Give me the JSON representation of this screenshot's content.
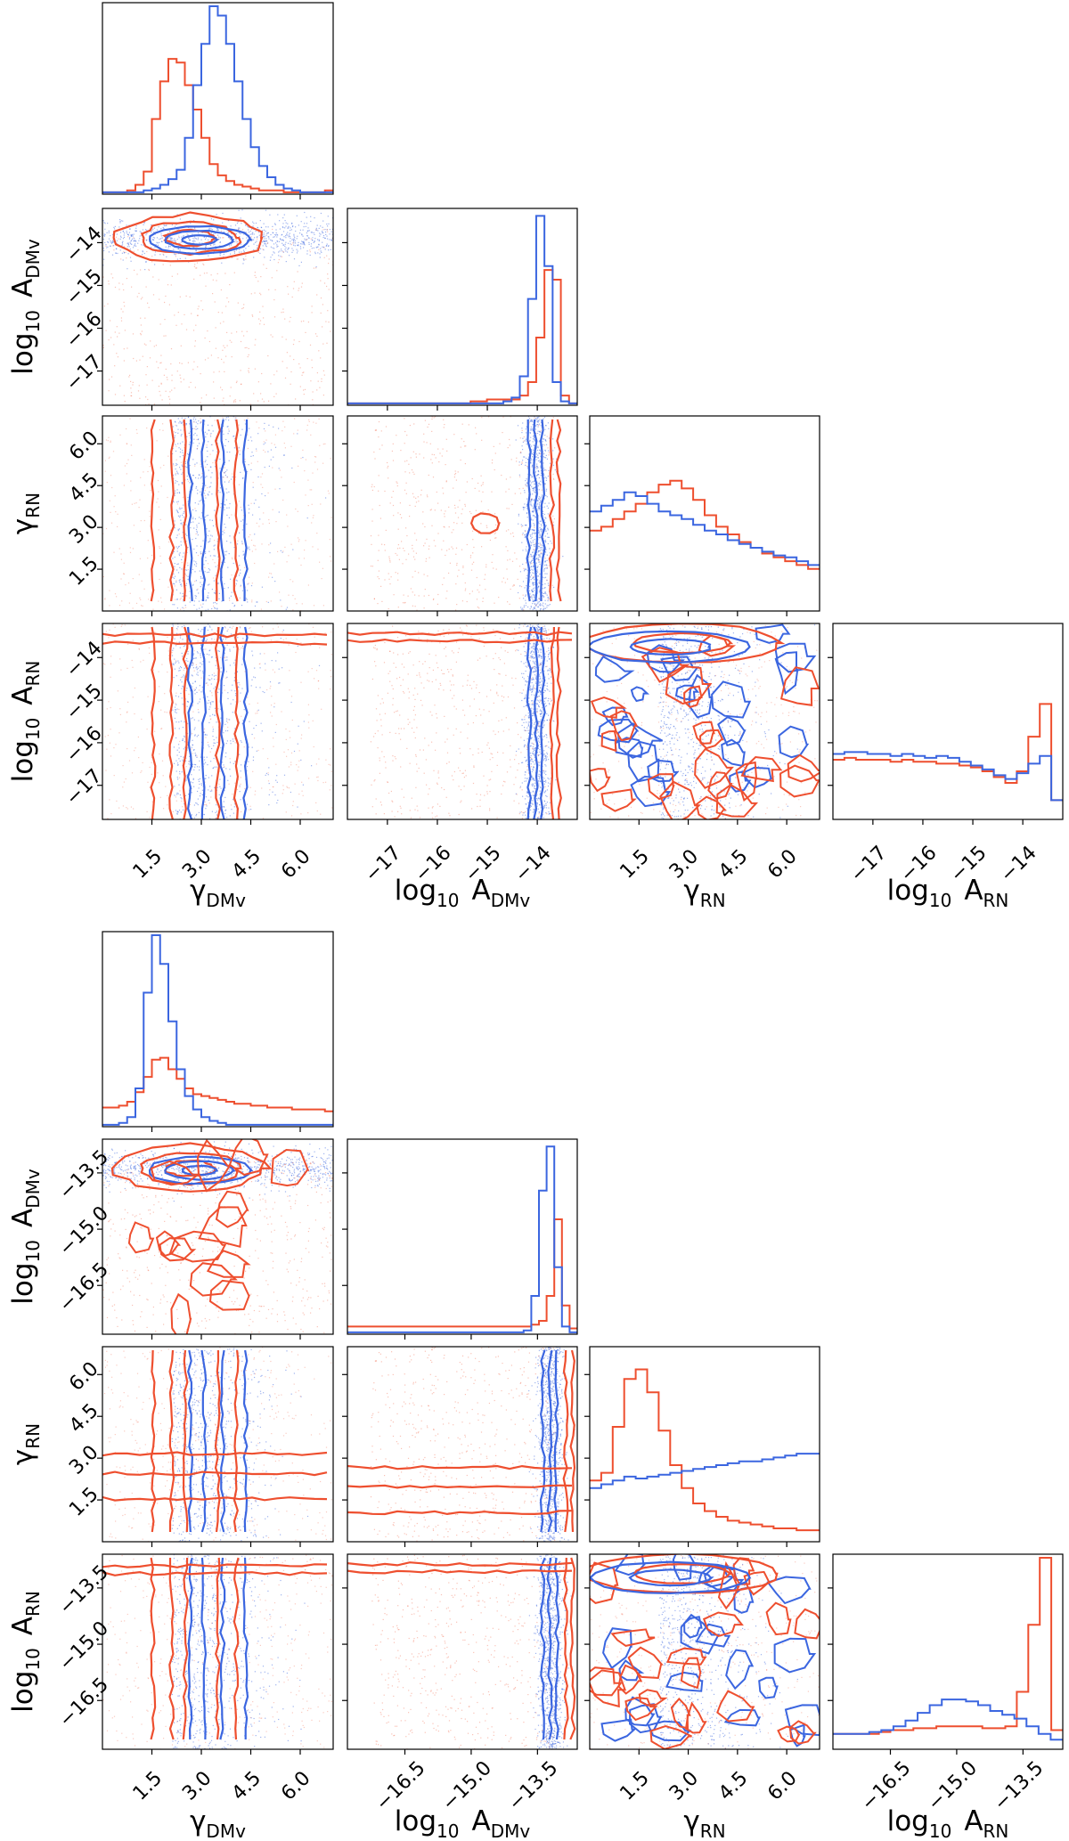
{
  "colors": {
    "red": "#ee4f2f",
    "blue": "#3b66e0",
    "frame": "#000000"
  },
  "chart_data": [
    {
      "type": "corner",
      "parameters": [
        "gamma_DMv",
        "log10_A_DMv",
        "gamma_RN",
        "log10_A_RN"
      ],
      "labels": {
        "gamma_DMv": {
          "main": "γ",
          "sub": "DMv"
        },
        "log10_A_DMv": {
          "pre": "log",
          "pre_sub": "10",
          "main": "A",
          "sub": "DMv"
        },
        "gamma_RN": {
          "main": "γ",
          "sub": "RN"
        },
        "log10_A_RN": {
          "pre": "log",
          "pre_sub": "10",
          "main": "A",
          "sub": "RN"
        }
      },
      "ranges": {
        "gamma_DMv": [
          0.0,
          7.0
        ],
        "log10_A_DMv": [
          -17.8,
          -13.2
        ],
        "gamma_RN": [
          0.0,
          7.0
        ],
        "log10_A_RN": [
          -17.8,
          -13.2
        ]
      },
      "ticks": {
        "gamma_DMv": {
          "values": [
            1.5,
            3.0,
            4.5,
            6.0
          ],
          "labels": [
            "1.5",
            "3.0",
            "4.5",
            "6.0"
          ]
        },
        "log10_A_DMv": {
          "values": [
            -17,
            -16,
            -15,
            -14
          ],
          "labels": [
            "−17",
            "−16",
            "−15",
            "−14"
          ]
        },
        "gamma_RN": {
          "values": [
            1.5,
            3.0,
            4.5,
            6.0
          ],
          "labels": [
            "1.5",
            "3.0",
            "4.5",
            "6.0"
          ]
        },
        "log10_A_RN": {
          "values": [
            -17,
            -16,
            -15,
            -14
          ],
          "labels": [
            "−17",
            "−16",
            "−15",
            "−14"
          ]
        }
      },
      "posteriors": {
        "blue": {
          "gamma_DMv": [
            0.01,
            0.01,
            0.01,
            0.01,
            0.01,
            0.02,
            0.03,
            0.05,
            0.08,
            0.13,
            0.3,
            0.58,
            0.8,
            1.0,
            0.95,
            0.8,
            0.6,
            0.4,
            0.25,
            0.15,
            0.09,
            0.05,
            0.03,
            0.02,
            0.01,
            0.01,
            0.01,
            0.01
          ],
          "log10_A_DMv": [
            0.01,
            0.01,
            0.01,
            0.01,
            0.01,
            0.01,
            0.01,
            0.01,
            0.01,
            0.01,
            0.01,
            0.01,
            0.01,
            0.01,
            0.01,
            0.01,
            0.01,
            0.01,
            0.01,
            0.02,
            0.04,
            0.15,
            0.55,
            0.98,
            0.72,
            0.12,
            0.02,
            0.01
          ],
          "gamma_RN": [
            0.52,
            0.55,
            0.58,
            0.62,
            0.6,
            0.56,
            0.52,
            0.5,
            0.48,
            0.45,
            0.42,
            0.4,
            0.37,
            0.35,
            0.33,
            0.31,
            0.29,
            0.28,
            0.26,
            0.24
          ],
          "log10_A_RN": [
            0.34,
            0.35,
            0.35,
            0.34,
            0.34,
            0.33,
            0.34,
            0.33,
            0.32,
            0.33,
            0.32,
            0.3,
            0.28,
            0.26,
            0.23,
            0.21,
            0.24,
            0.29,
            0.33,
            0.1
          ]
        },
        "red": {
          "gamma_DMv": [
            0.01,
            0.01,
            0.01,
            0.02,
            0.05,
            0.12,
            0.4,
            0.6,
            0.72,
            0.7,
            0.58,
            0.45,
            0.3,
            0.16,
            0.1,
            0.07,
            0.05,
            0.04,
            0.03,
            0.02,
            0.02,
            0.02,
            0.01,
            0.01,
            0.01,
            0.01,
            0.01,
            0.02
          ],
          "log10_A_DMv": [
            0.01,
            0.01,
            0.01,
            0.01,
            0.01,
            0.01,
            0.01,
            0.01,
            0.01,
            0.01,
            0.01,
            0.01,
            0.01,
            0.01,
            0.01,
            0.02,
            0.02,
            0.03,
            0.03,
            0.03,
            0.03,
            0.05,
            0.12,
            0.35,
            0.7,
            0.65,
            0.05,
            0.01
          ],
          "gamma_RN": [
            0.42,
            0.44,
            0.48,
            0.52,
            0.56,
            0.62,
            0.66,
            0.68,
            0.64,
            0.58,
            0.5,
            0.44,
            0.4,
            0.36,
            0.33,
            0.3,
            0.28,
            0.26,
            0.24,
            0.22
          ],
          "log10_A_RN": [
            0.31,
            0.32,
            0.31,
            0.31,
            0.31,
            0.3,
            0.31,
            0.3,
            0.3,
            0.29,
            0.29,
            0.28,
            0.27,
            0.25,
            0.22,
            0.19,
            0.25,
            0.43,
            0.6,
            0.1
          ]
        }
      }
    },
    {
      "type": "corner",
      "parameters": [
        "gamma_DMv",
        "log10_A_DMv",
        "gamma_RN",
        "log10_A_RN"
      ],
      "labels": {
        "gamma_DMv": {
          "main": "γ",
          "sub": "DMv"
        },
        "log10_A_DMv": {
          "pre": "log",
          "pre_sub": "10",
          "main": "A",
          "sub": "DMv"
        },
        "gamma_RN": {
          "main": "γ",
          "sub": "RN"
        },
        "log10_A_RN": {
          "pre": "log",
          "pre_sub": "10",
          "main": "A",
          "sub": "RN"
        }
      },
      "ranges": {
        "gamma_DMv": [
          0.0,
          7.0
        ],
        "log10_A_DMv": [
          -17.8,
          -12.6
        ],
        "gamma_RN": [
          0.0,
          7.0
        ],
        "log10_A_RN": [
          -17.8,
          -12.6
        ]
      },
      "ticks": {
        "gamma_DMv": {
          "values": [
            1.5,
            3.0,
            4.5,
            6.0
          ],
          "labels": [
            "1.5",
            "3.0",
            "4.5",
            "6.0"
          ]
        },
        "log10_A_DMv": {
          "values": [
            -16.5,
            -15.0,
            -13.5
          ],
          "labels": [
            "−16.5",
            "−15.0",
            "−13.5"
          ]
        },
        "gamma_RN": {
          "values": [
            1.5,
            3.0,
            4.5,
            6.0
          ],
          "labels": [
            "1.5",
            "3.0",
            "4.5",
            "6.0"
          ]
        },
        "log10_A_RN": {
          "values": [
            -16.5,
            -15.0,
            -13.5
          ],
          "labels": [
            "−16.5",
            "−15.0",
            "−13.5"
          ]
        }
      },
      "posteriors": {
        "blue": {
          "gamma_DMv": [
            0.01,
            0.01,
            0.02,
            0.05,
            0.2,
            0.7,
            1.0,
            0.85,
            0.55,
            0.3,
            0.16,
            0.09,
            0.05,
            0.03,
            0.02,
            0.01,
            0.01,
            0.01,
            0.01,
            0.01,
            0.01,
            0.01,
            0.01,
            0.01,
            0.01,
            0.01,
            0.01,
            0.01
          ],
          "log10_A_DMv": [
            0.01,
            0.01,
            0.01,
            0.01,
            0.01,
            0.01,
            0.01,
            0.01,
            0.01,
            0.01,
            0.01,
            0.01,
            0.01,
            0.01,
            0.01,
            0.01,
            0.01,
            0.01,
            0.01,
            0.01,
            0.01,
            0.01,
            0.01,
            0.02,
            0.2,
            0.75,
            0.98,
            0.35,
            0.04,
            0.01
          ],
          "gamma_RN": [
            0.28,
            0.3,
            0.32,
            0.34,
            0.33,
            0.34,
            0.35,
            0.36,
            0.37,
            0.38,
            0.39,
            0.4,
            0.41,
            0.42,
            0.42,
            0.43,
            0.44,
            0.45,
            0.46,
            0.46
          ],
          "log10_A_RN": [
            0.08,
            0.08,
            0.08,
            0.09,
            0.1,
            0.12,
            0.15,
            0.19,
            0.23,
            0.26,
            0.26,
            0.25,
            0.23,
            0.2,
            0.18,
            0.16,
            0.12,
            0.08,
            0.05
          ]
        },
        "red": {
          "gamma_DMv": [
            0.1,
            0.1,
            0.11,
            0.13,
            0.18,
            0.26,
            0.35,
            0.36,
            0.3,
            0.25,
            0.2,
            0.17,
            0.16,
            0.15,
            0.14,
            0.13,
            0.12,
            0.12,
            0.11,
            0.11,
            0.1,
            0.1,
            0.1,
            0.09,
            0.09,
            0.09,
            0.09,
            0.08
          ],
          "log10_A_DMv": [
            0.04,
            0.04,
            0.04,
            0.04,
            0.04,
            0.04,
            0.04,
            0.04,
            0.04,
            0.04,
            0.04,
            0.04,
            0.04,
            0.04,
            0.04,
            0.04,
            0.04,
            0.04,
            0.04,
            0.04,
            0.04,
            0.04,
            0.04,
            0.04,
            0.05,
            0.07,
            0.2,
            0.6,
            0.15,
            0.03
          ],
          "gamma_RN": [
            0.32,
            0.36,
            0.6,
            0.85,
            0.9,
            0.78,
            0.58,
            0.4,
            0.28,
            0.2,
            0.16,
            0.13,
            0.11,
            0.1,
            0.09,
            0.08,
            0.07,
            0.07,
            0.06,
            0.06
          ],
          "log10_A_RN": [
            0.08,
            0.08,
            0.08,
            0.08,
            0.09,
            0.1,
            0.1,
            0.11,
            0.11,
            0.12,
            0.12,
            0.12,
            0.12,
            0.11,
            0.11,
            0.12,
            0.3,
            0.65,
            1.0,
            0.1
          ]
        }
      }
    }
  ]
}
